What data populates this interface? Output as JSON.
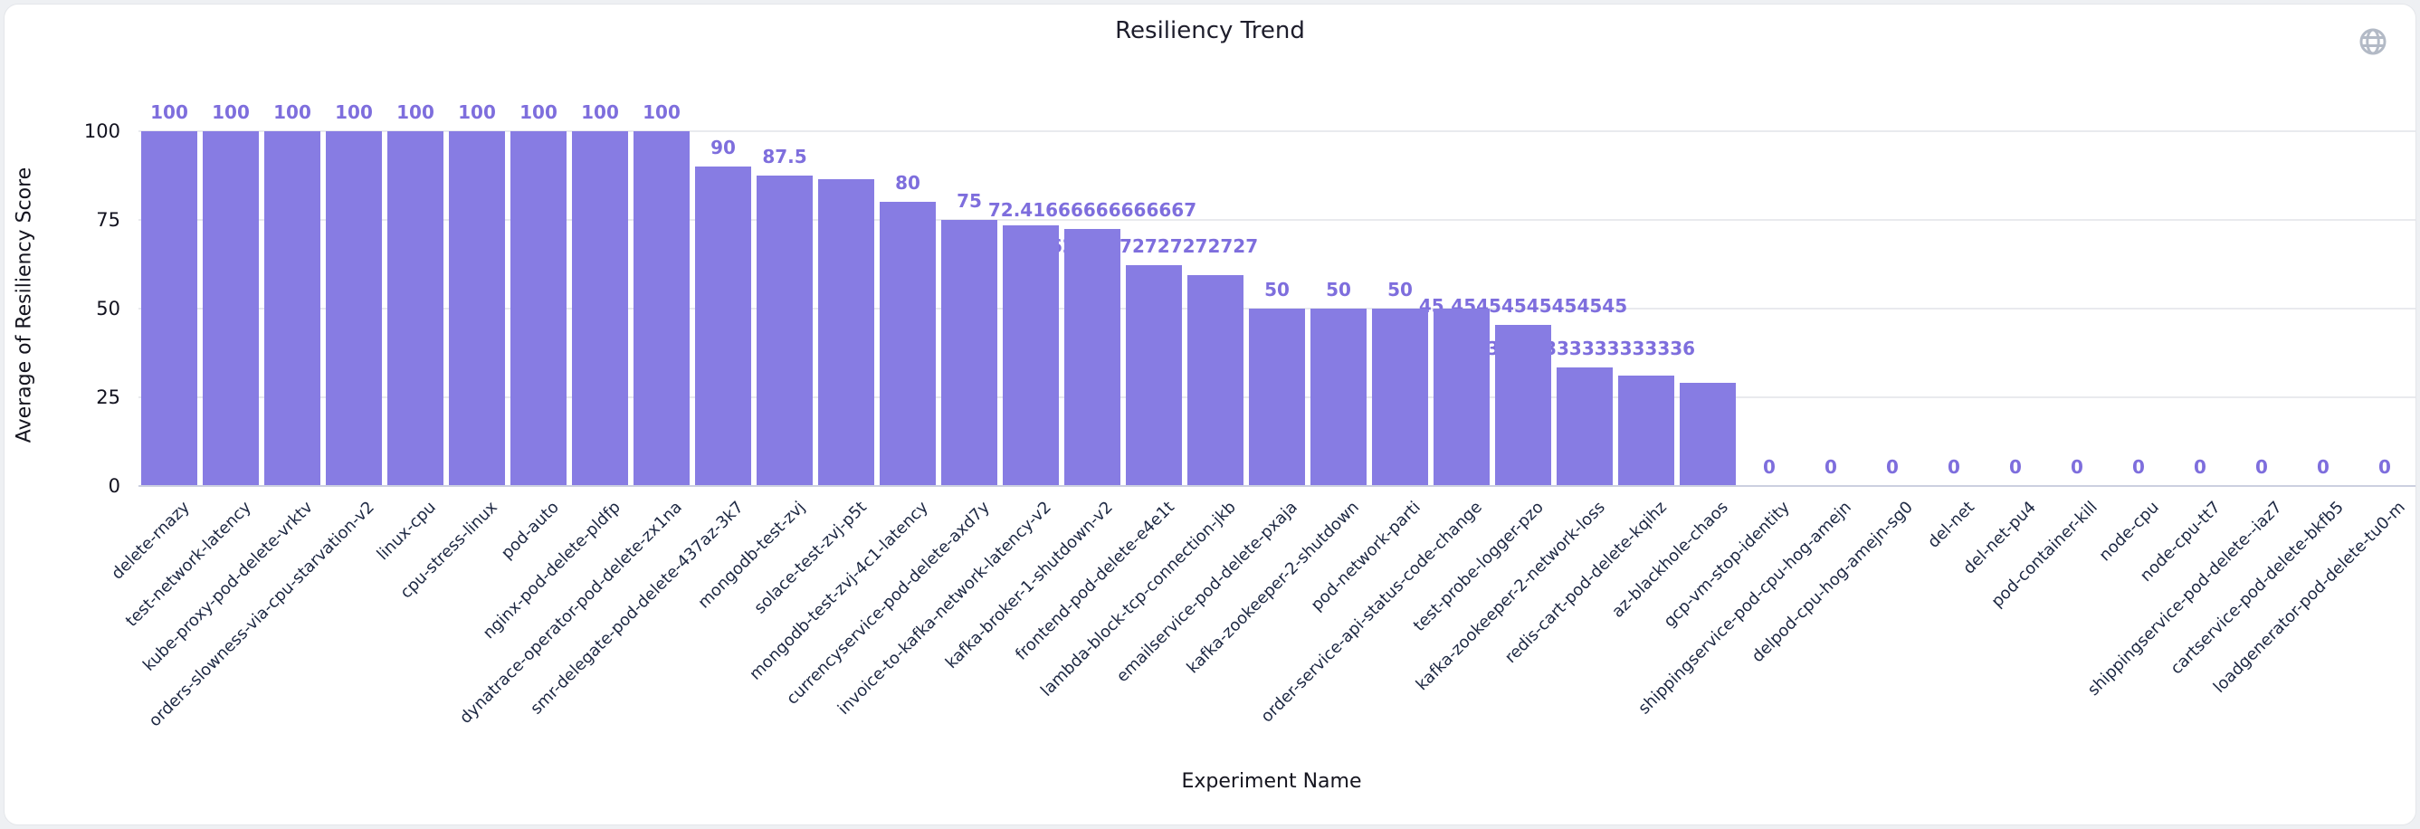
{
  "page": {
    "background": "#eef0f3",
    "card_background": "#ffffff"
  },
  "header": {
    "title": "Resiliency Trend",
    "globe_icon": "globe-icon",
    "globe_color": "#b3bac6"
  },
  "chart_data": {
    "type": "bar",
    "title": "Resiliency Trend",
    "xlabel": "Experiment Name",
    "ylabel": "Average of Resiliency Score",
    "ylim": [
      0,
      100
    ],
    "yticks": [
      0,
      25,
      50,
      75,
      100
    ],
    "grid": true,
    "legend": "none",
    "bar_color": "#877CE3",
    "value_label_color": "#7E6EDD",
    "categories": [
      "delete-rnazy",
      "test-network-latency",
      "kube-proxy-pod-delete-vrktv",
      "orders-slowness-via-cpu-starvation-v2",
      "linux-cpu",
      "cpu-stress-linux",
      "pod-auto",
      "nginx-pod-delete-pldfp",
      "dynatrace-operator-pod-delete-zx1na",
      "smr-delegate-pod-delete-437az-3k7",
      "mongodb-test-zvj",
      "solace-test-zvj-p5t",
      "mongodb-test-zvj-4c1-latency",
      "currencyservice-pod-delete-axd7y",
      "invoice-to-kafka-network-latency-v2",
      "kafka-broker-1-shutdown-v2",
      "frontend-pod-delete-e4e1t",
      "lambda-block-tcp-connection-jkb",
      "emailservice-pod-delete-pxaja",
      "kafka-zookeeper-2-shutdown",
      "pod-network-parti",
      "order-service-api-status-code-change",
      "test-probe-logger-pzo",
      "kafka-zookeeper-2-network-loss",
      "redis-cart-pod-delete-kqihz",
      "az-blackhole-chaos",
      "gcp-vm-stop-identity",
      "shippingservice-pod-cpu-hog-amejn",
      "delpod-cpu-hog-amejn-sg0",
      "del-net",
      "del-net-pu4",
      "pod-container-kill",
      "node-cpu",
      "node-cpu-tt7",
      "shippingservice-pod-delete--iaz7",
      "cartservice-pod-delete-bkfb5",
      "loadgenerator-pod-delete-tu0-m"
    ],
    "values": [
      100,
      100,
      100,
      100,
      100,
      100,
      100,
      100,
      100,
      90,
      87.5,
      86.6,
      80,
      75,
      73.5,
      72.41666666666667,
      62.27272727272727,
      59.5,
      50,
      50,
      50,
      50,
      45.45454545454545,
      33.333333333333336,
      31.25,
      29.2,
      0,
      0,
      0,
      0,
      0,
      0,
      0,
      0,
      0,
      0,
      0
    ],
    "bar_labels": [
      "100",
      "100",
      "100",
      "100",
      "100",
      "100",
      "100",
      "100",
      "100",
      "90",
      "87.5",
      "",
      "80",
      "75",
      "",
      "72.41666666666667",
      "62.27272727272727",
      "",
      "50",
      "50",
      "50",
      "",
      "45.45454545454545",
      "33.333333333333336",
      "",
      "",
      "0",
      "0",
      "0",
      "0",
      "0",
      "0",
      "0",
      "0",
      "0",
      "0",
      "0"
    ]
  }
}
